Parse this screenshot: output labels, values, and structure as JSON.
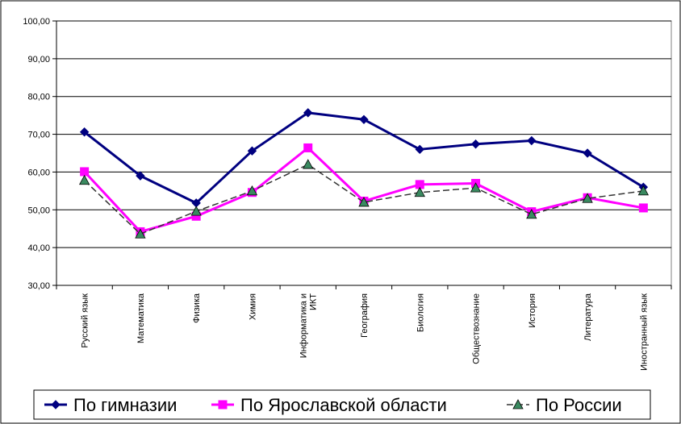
{
  "chart_data": {
    "type": "line",
    "categories": [
      "Русский язык",
      "Математика",
      "Физика",
      "Химия",
      "Информатика и ИКТ",
      "География",
      "Биология",
      "Обществознание",
      "История",
      "Литература",
      "Иностранный язык"
    ],
    "series": [
      {
        "name": "По гимназии",
        "color": "#000080",
        "marker": "diamond",
        "dash": "solid",
        "values": [
          70.6,
          59.0,
          51.8,
          65.6,
          75.7,
          73.9,
          66.0,
          67.4,
          68.3,
          65.0,
          56.0
        ]
      },
      {
        "name": "По Ярославской области",
        "color": "#ff00ff",
        "marker": "square",
        "dash": "solid",
        "values": [
          60.1,
          44.2,
          48.3,
          54.6,
          66.4,
          52.3,
          56.7,
          57.0,
          49.5,
          53.2,
          50.5
        ]
      },
      {
        "name": "По России",
        "color": "#333333",
        "markerColor": "#3a8a60",
        "marker": "triangle",
        "dash": "dashed",
        "values": [
          57.8,
          43.6,
          49.6,
          55.0,
          62.0,
          52.0,
          54.6,
          55.8,
          48.8,
          53.0,
          55.0
        ]
      }
    ],
    "ylim": [
      30,
      100
    ],
    "yticks": [
      "30,00",
      "40,00",
      "50,00",
      "60,00",
      "70,00",
      "80,00",
      "90,00",
      "100,00"
    ],
    "grid": true,
    "legend": "bottom"
  }
}
